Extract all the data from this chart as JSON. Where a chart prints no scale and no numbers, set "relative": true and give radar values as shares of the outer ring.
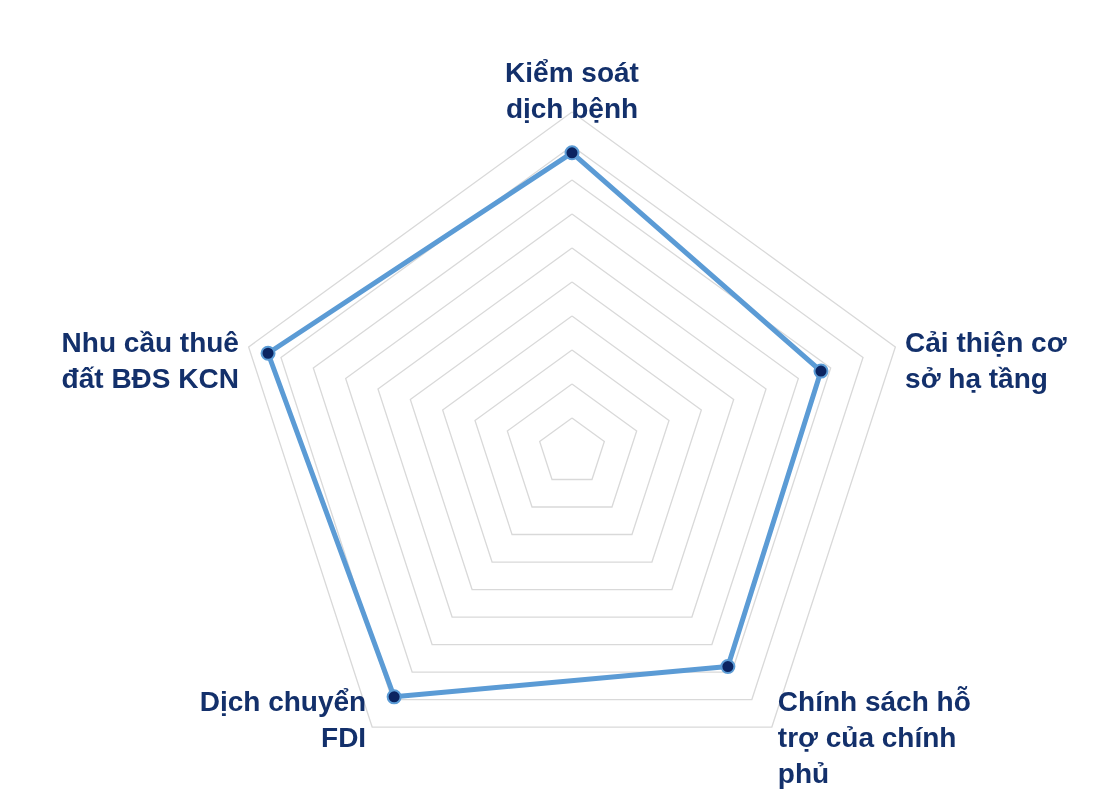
{
  "chart_data": {
    "type": "radar",
    "relative": true,
    "grid": true,
    "marker": "circle",
    "line_style": "solid",
    "categories": [
      "Kiểm soát dịch bệnh",
      "Cải thiện cơ sở hạ tầng",
      "Chính sách hỗ trợ của chính phủ",
      "Dịch chuyển FDI",
      "Nhu cầu thuê đất BĐS KCN"
    ],
    "series": [
      {
        "color": "#5b9bd5",
        "values": [
          0.88,
          0.77,
          0.78,
          0.89,
          0.94
        ]
      }
    ]
  }
}
